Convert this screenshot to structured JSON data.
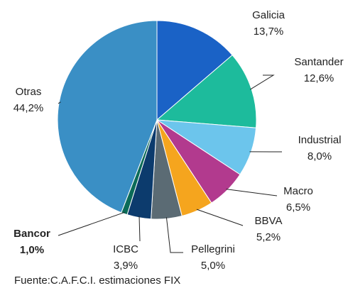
{
  "chart_data": {
    "type": "pie",
    "categories": [
      "Galicia",
      "Santander",
      "Industrial",
      "Macro",
      "BBVA",
      "Pellegrini",
      "ICBC",
      "Bancor",
      "Otras"
    ],
    "values": [
      13.7,
      12.6,
      8.0,
      6.5,
      5.2,
      5.0,
      3.9,
      1.0,
      44.2
    ],
    "value_labels": [
      "13,7%",
      "12,6%",
      "8,0%",
      "6,5%",
      "5,2%",
      "5,0%",
      "3,9%",
      "1,0%",
      "44,2%"
    ],
    "colors": [
      "#1a62c6",
      "#1dbb9c",
      "#6cc5ec",
      "#b23a8e",
      "#f5a51e",
      "#5b6b74",
      "#0c3b6d",
      "#0b6b58",
      "#3a8fc5"
    ],
    "note": "Fuente:C.A.F.C.I. estimaciones FIX"
  }
}
